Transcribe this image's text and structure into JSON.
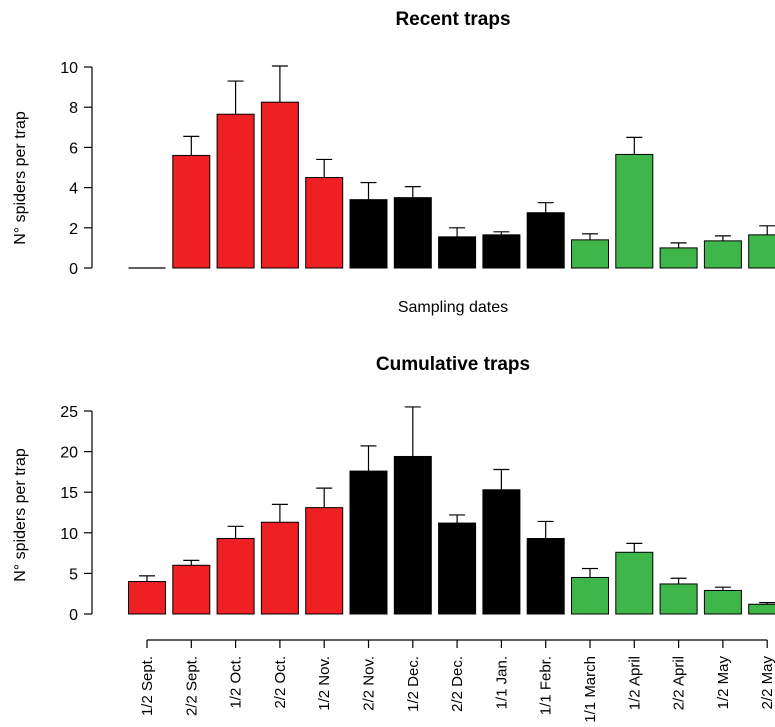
{
  "categories": [
    "1/2 Sept.",
    "2/2 Sept.",
    "1/2 Oct.",
    "2/2 Oct.",
    "1/2 Nov.",
    "2/2 Nov.",
    "1/2 Dec.",
    "2/2 Dec.",
    "1/1 Jan.",
    "1/1 Febr.",
    "1/1 March",
    "1/2 April",
    "2/2 April",
    "1/2 May",
    "2/2 May"
  ],
  "colors": {
    "red": "#ee2024",
    "black": "#000000",
    "green": "#3fb64a"
  },
  "chart_data": [
    {
      "type": "bar",
      "title": "Recent traps",
      "xlabel": "Sampling dates",
      "ylabel": "N° spiders per trap",
      "ylim": [
        0,
        10
      ],
      "yticks": [
        0,
        2,
        4,
        6,
        8,
        10
      ],
      "show_category_labels": false,
      "values": [
        0,
        5.6,
        7.65,
        8.25,
        4.5,
        3.4,
        3.5,
        1.55,
        1.65,
        2.75,
        1.4,
        5.65,
        1.0,
        1.35,
        1.65
      ],
      "errors": [
        0,
        0.95,
        1.65,
        1.8,
        0.9,
        0.85,
        0.55,
        0.45,
        0.15,
        0.5,
        0.3,
        0.85,
        0.25,
        0.25,
        0.45
      ],
      "bar_colors": [
        "red",
        "red",
        "red",
        "red",
        "red",
        "black",
        "black",
        "black",
        "black",
        "black",
        "green",
        "green",
        "green",
        "green",
        "green"
      ]
    },
    {
      "type": "bar",
      "title": "Cumulative traps",
      "xlabel": "",
      "ylabel": "N° spiders per trap",
      "ylim": [
        0,
        25
      ],
      "yticks": [
        0,
        5,
        10,
        15,
        20,
        25
      ],
      "show_category_labels": true,
      "values": [
        4.0,
        6.0,
        9.3,
        11.3,
        13.1,
        17.6,
        19.4,
        11.2,
        15.3,
        9.3,
        4.5,
        7.6,
        3.7,
        2.9,
        1.2
      ],
      "errors": [
        0.7,
        0.6,
        1.5,
        2.2,
        2.4,
        3.1,
        6.1,
        1.0,
        2.5,
        2.1,
        1.1,
        1.1,
        0.7,
        0.4,
        0.2
      ],
      "bar_colors": [
        "red",
        "red",
        "red",
        "red",
        "red",
        "black",
        "black",
        "black",
        "black",
        "black",
        "green",
        "green",
        "green",
        "green",
        "green"
      ]
    }
  ]
}
